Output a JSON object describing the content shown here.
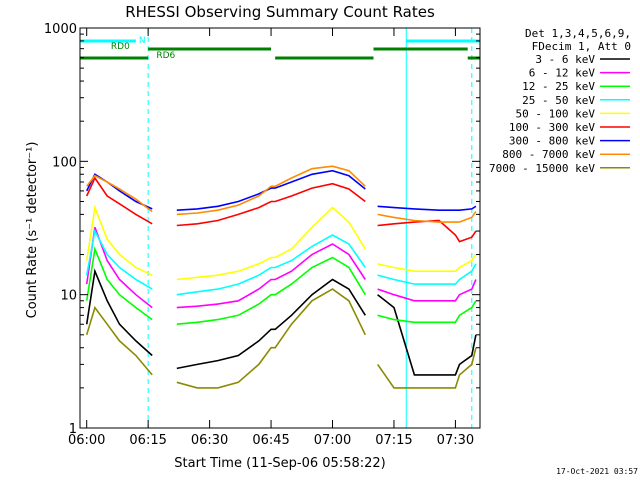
{
  "chart_data": {
    "type": "line",
    "title": "RHESSI Observing Summary Count Rates",
    "xlabel": "Start Time (11-Sep-06 05:58:22)",
    "ylabel": "Count Rate (s⁻¹ detector⁻¹)",
    "scale_y": "log",
    "ylim": [
      1,
      1000
    ],
    "xlim": [
      "05:58:22",
      "07:36:00"
    ],
    "x_ticks": [
      "06:00",
      "06:15",
      "06:30",
      "06:45",
      "07:00",
      "07:15",
      "07:30"
    ],
    "y_ticks": [
      "1",
      "10",
      "100",
      "1000"
    ],
    "legend_header": [
      "Det 1,3,4,5,6,9,",
      "FDecim 1, Att 0"
    ],
    "legend_position": "right",
    "x": [
      "06:00",
      "06:02",
      "06:05",
      "06:08",
      "06:12",
      "06:16",
      "06:19",
      "06:22",
      "06:27",
      "06:32",
      "06:37",
      "06:42",
      "06:45",
      "06:46",
      "06:50",
      "06:55",
      "07:00",
      "07:04",
      "07:08",
      "07:09",
      "07:11",
      "07:15",
      "07:20",
      "07:26",
      "07:30",
      "07:31",
      "07:34",
      "07:35"
    ],
    "series": [
      {
        "name": "3 - 6 keV",
        "color": "#000000",
        "values": [
          6,
          15,
          9,
          6,
          4.5,
          3.5,
          null,
          2.8,
          3.0,
          3.2,
          3.5,
          4.5,
          5.5,
          5.5,
          7,
          10,
          13,
          11,
          7,
          null,
          10,
          8,
          2.5,
          2.5,
          2.5,
          3,
          3.5,
          5
        ]
      },
      {
        "name": "6 - 12 keV",
        "color": "#ff00ff",
        "values": [
          12,
          32,
          18,
          13,
          10,
          8,
          null,
          8,
          8.2,
          8.5,
          9,
          11,
          13,
          13,
          15,
          20,
          24,
          20,
          13,
          null,
          11,
          10,
          9,
          9,
          9,
          10,
          11,
          13
        ]
      },
      {
        "name": "12 - 25 keV",
        "color": "#00ff00",
        "values": [
          9,
          22,
          13,
          10,
          8,
          6.5,
          null,
          6,
          6.2,
          6.5,
          7,
          8.5,
          10,
          10,
          12,
          16,
          19,
          16,
          10,
          null,
          7,
          6.5,
          6.2,
          6.2,
          6.2,
          7,
          8,
          9
        ]
      },
      {
        "name": "25 - 50 keV",
        "color": "#00ffff",
        "values": [
          14,
          30,
          20,
          16,
          13,
          11,
          null,
          10,
          10.5,
          11,
          12,
          14,
          16,
          16,
          18,
          23,
          28,
          24,
          16,
          null,
          14,
          13,
          12,
          12,
          12,
          13,
          15,
          17
        ]
      },
      {
        "name": "50 - 100 keV",
        "color": "#ffff00",
        "values": [
          18,
          45,
          26,
          20,
          16,
          14,
          null,
          13,
          13.5,
          14,
          15,
          17,
          19,
          19,
          22,
          32,
          45,
          35,
          22,
          null,
          17,
          16,
          15,
          15,
          15,
          16,
          18,
          20
        ]
      },
      {
        "name": "100 - 300 keV",
        "color": "#ff0000",
        "values": [
          55,
          75,
          55,
          48,
          40,
          34,
          null,
          33,
          34,
          36,
          40,
          45,
          50,
          50,
          55,
          63,
          68,
          62,
          50,
          null,
          33,
          34,
          35,
          36,
          28,
          25,
          27,
          30
        ]
      },
      {
        "name": "300 - 800 keV",
        "color": "#0000ff",
        "values": [
          60,
          80,
          70,
          60,
          50,
          44,
          null,
          43,
          44,
          46,
          50,
          57,
          63,
          63,
          70,
          80,
          85,
          78,
          62,
          null,
          46,
          45,
          44,
          43,
          43,
          43,
          44,
          46
        ]
      },
      {
        "name": "800 - 7000 keV",
        "color": "#ff8c00",
        "values": [
          65,
          78,
          70,
          62,
          52,
          42,
          null,
          40,
          41,
          43,
          47,
          55,
          65,
          65,
          75,
          88,
          92,
          85,
          65,
          null,
          40,
          38,
          36,
          35,
          35,
          35,
          38,
          42
        ]
      },
      {
        "name": "7000 - 15000 keV",
        "color": "#8b8b00",
        "values": [
          5,
          8,
          6,
          4.5,
          3.5,
          2.5,
          null,
          2.2,
          2.0,
          2.0,
          2.2,
          3,
          4,
          4,
          6,
          9,
          11,
          9,
          5,
          null,
          3,
          2,
          2,
          2,
          2,
          2.5,
          3,
          4
        ]
      }
    ],
    "flag_bars": [
      {
        "label": "N",
        "color": "#00ffff",
        "segments": [
          [
            "05:58:22",
            "06:12"
          ],
          [
            "07:18",
            "07:36"
          ]
        ]
      },
      {
        "label": "RD0",
        "color": "#008000",
        "segments": [
          [
            "06:15",
            "06:45"
          ],
          [
            "07:10",
            "07:33"
          ]
        ]
      },
      {
        "label": "RD6",
        "color": "#008000",
        "segments": [
          [
            "05:58:22",
            "06:15"
          ],
          [
            "06:46",
            "07:10"
          ],
          [
            "07:33",
            "07:36"
          ]
        ]
      }
    ],
    "vertical_lines": [
      {
        "time": "05:58:22",
        "style": "solid",
        "color": "#00ffff"
      },
      {
        "time": "06:15",
        "style": "dashed",
        "color": "#00ffff"
      },
      {
        "time": "07:18",
        "style": "solid",
        "color": "#00ffff"
      },
      {
        "time": "07:34",
        "style": "dashed",
        "color": "#00ffff"
      }
    ],
    "stamp": "17-Oct-2021 03:57"
  }
}
